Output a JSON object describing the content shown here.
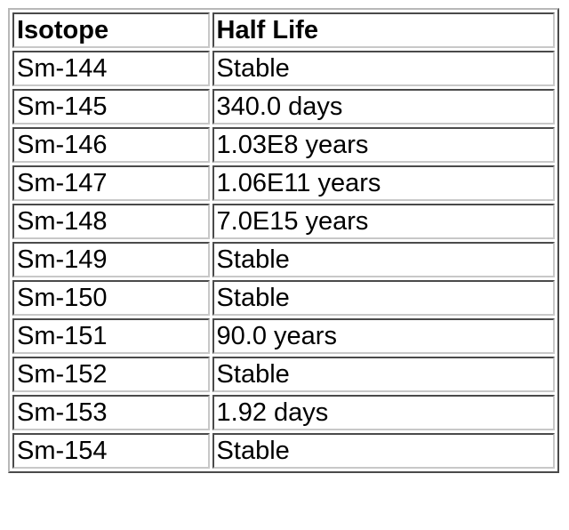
{
  "table": {
    "headers": [
      "Isotope",
      "Half Life"
    ],
    "rows": [
      [
        "Sm-144",
        "Stable"
      ],
      [
        "Sm-145",
        "340.0 days"
      ],
      [
        "Sm-146",
        "1.03E8 years"
      ],
      [
        "Sm-147",
        "1.06E11 years"
      ],
      [
        "Sm-148",
        "7.0E15 years"
      ],
      [
        "Sm-149",
        "Stable"
      ],
      [
        "Sm-150",
        "Stable"
      ],
      [
        "Sm-151",
        "90.0 years"
      ],
      [
        "Sm-152",
        "Stable"
      ],
      [
        "Sm-153",
        "1.92 days"
      ],
      [
        "Sm-154",
        "Stable"
      ]
    ]
  }
}
